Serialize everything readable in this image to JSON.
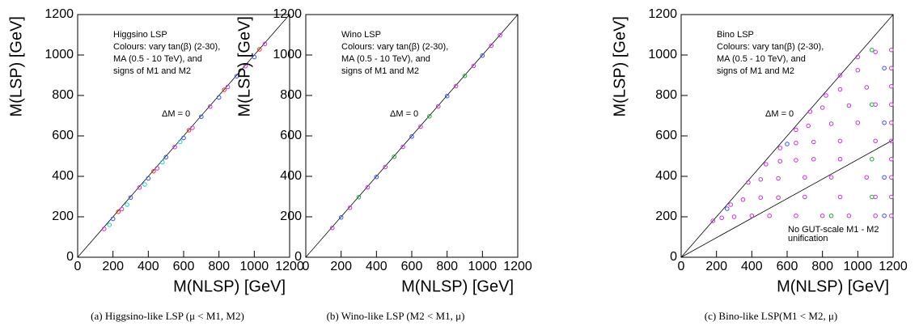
{
  "chart_data": [
    {
      "type": "scatter",
      "xlabel": "M(NLSP) [GeV]",
      "ylabel": "M(LSP) [GeV]",
      "caption": "(a) Higgsino-like LSP (μ < M1, M2)",
      "annotations": [
        "Higgsino LSP",
        "Colours: vary tan(β) (2-30),",
        "MA (0.5 - 10 TeV), and",
        "signs of M1 and  M2"
      ],
      "line_label": "ΔM = 0",
      "lines": [
        {
          "x": [
            0,
            1200
          ],
          "y": [
            0,
            1200
          ]
        }
      ],
      "xlim": [
        0,
        1200
      ],
      "ylim": [
        0,
        1200
      ],
      "xticks": [
        0,
        200,
        400,
        600,
        800,
        1000,
        1200
      ],
      "yticks": [
        0,
        200,
        400,
        600,
        800,
        1000,
        1200
      ],
      "series": [
        {
          "color": "#cc33dd",
          "x": [
            150,
            250,
            350,
            450,
            550,
            650,
            750,
            850,
            950,
            1060
          ],
          "values": [
            140,
            238,
            345,
            440,
            545,
            640,
            745,
            842,
            945,
            1055
          ]
        },
        {
          "color": "#3355ff",
          "x": [
            200,
            300,
            400,
            500,
            600,
            700,
            800,
            900,
            1000
          ],
          "values": [
            190,
            295,
            390,
            495,
            590,
            695,
            790,
            895,
            990
          ]
        },
        {
          "color": "#22ccdd",
          "x": [
            180,
            280,
            380,
            480,
            580
          ],
          "values": [
            160,
            260,
            360,
            470,
            570
          ]
        },
        {
          "color": "#ee3322",
          "x": [
            230,
            430,
            630,
            830,
            1030
          ],
          "values": [
            225,
            425,
            628,
            828,
            1028
          ]
        }
      ]
    },
    {
      "type": "scatter",
      "xlabel": "M(NLSP) [GeV]",
      "ylabel": "M(LSP) [GeV]",
      "caption": "(b) Wino-like LSP (M2 < M1, μ)",
      "annotations": [
        "Wino LSP",
        "Colours: vary tan(β) (2-30),",
        "MA (0.5 - 10 TeV), and",
        "signs of M1 and  M2"
      ],
      "line_label": "ΔM = 0",
      "lines": [
        {
          "x": [
            0,
            1200
          ],
          "y": [
            0,
            1200
          ]
        }
      ],
      "xlim": [
        0,
        1200
      ],
      "ylim": [
        0,
        1200
      ],
      "xticks": [
        0,
        200,
        400,
        600,
        800,
        1000,
        1200
      ],
      "yticks": [
        0,
        200,
        400,
        600,
        800,
        1000,
        1200
      ],
      "series": [
        {
          "color": "#cc33dd",
          "x": [
            150,
            250,
            350,
            450,
            550,
            650,
            750,
            850,
            950,
            1050,
            1100
          ],
          "values": [
            145,
            245,
            346,
            446,
            546,
            646,
            746,
            846,
            946,
            1046,
            1098
          ]
        },
        {
          "color": "#3355ff",
          "x": [
            200,
            400,
            600,
            800,
            1000
          ],
          "values": [
            197,
            397,
            597,
            797,
            997
          ]
        },
        {
          "color": "#22aa44",
          "x": [
            300,
            500,
            700,
            900
          ],
          "values": [
            297,
            497,
            697,
            897
          ]
        }
      ]
    },
    {
      "type": "scatter",
      "xlabel": "M(NLSP) [GeV]",
      "ylabel": "M(LSP) [GeV]",
      "caption": "(c) Bino-like LSP(M1 < M2, μ)",
      "annotations": [
        "Bino LSP",
        "Colours: vary tan(β) (2-30),",
        "MA (0.5 - 10 TeV), and",
        "signs of M1 and  M2"
      ],
      "line_label": "ΔM = 0",
      "note": [
        "No GUT-scale M1 - M2",
        "unification"
      ],
      "lines": [
        {
          "x": [
            0,
            1200
          ],
          "y": [
            0,
            1200
          ]
        },
        {
          "x": [
            0,
            1200
          ],
          "y": [
            0,
            580
          ]
        }
      ],
      "xlim": [
        0,
        1200
      ],
      "ylim": [
        0,
        1200
      ],
      "xticks": [
        0,
        200,
        400,
        600,
        800,
        1000,
        1200
      ],
      "yticks": [
        0,
        200,
        400,
        600,
        800,
        1000,
        1200
      ],
      "series": [
        {
          "color": "#cc33dd",
          "x": [
            180,
            230,
            300,
            400,
            500,
            650,
            800,
            950,
            1100,
            1190,
            280,
            350,
            450,
            550,
            700,
            900,
            1100,
            1190,
            380,
            450,
            550,
            700,
            850,
            1050,
            1190,
            480,
            560,
            650,
            750,
            900,
            1190,
            560,
            650,
            750,
            900,
            1100,
            1190,
            650,
            720,
            850,
            1000,
            1190,
            730,
            800,
            950,
            1100,
            1190,
            820,
            900,
            1050,
            1190,
            900,
            1000,
            1190,
            1000,
            1100,
            1190
          ],
          "values": [
            180,
            195,
            200,
            205,
            205,
            205,
            205,
            205,
            205,
            205,
            260,
            285,
            295,
            295,
            298,
            298,
            298,
            298,
            370,
            385,
            390,
            395,
            395,
            395,
            395,
            460,
            475,
            480,
            485,
            485,
            485,
            540,
            565,
            570,
            575,
            575,
            575,
            630,
            650,
            660,
            665,
            665,
            720,
            740,
            750,
            755,
            755,
            800,
            830,
            840,
            845,
            900,
            925,
            935,
            990,
            1015,
            1025
          ]
        },
        {
          "color": "#3355ff",
          "x": [
            260,
            600,
            1150,
            1150,
            1150,
            1150
          ],
          "values": [
            240,
            560,
            205,
            395,
            665,
            935
          ]
        },
        {
          "color": "#22aa44",
          "x": [
            1080,
            1080,
            1080,
            1080,
            850
          ],
          "values": [
            298,
            485,
            755,
            1025,
            205
          ]
        }
      ]
    }
  ]
}
